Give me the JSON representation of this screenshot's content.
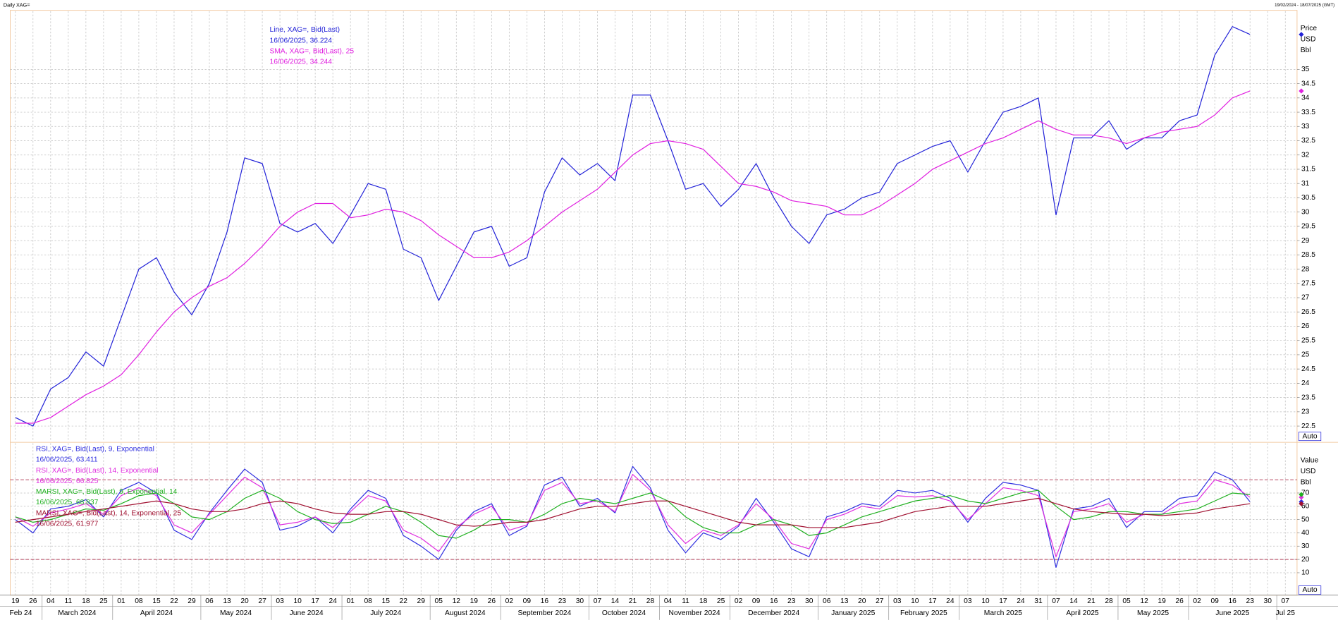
{
  "header": {
    "title": "Daily XAG=",
    "range": "19/02/2024 - 18/07/2025 (GMT)"
  },
  "chart_data": [
    {
      "type": "line",
      "axis_labels": [
        "Price",
        "USD",
        "Bbl"
      ],
      "scale_mode": "Auto",
      "ylim": [
        21.96,
        37.04
      ],
      "yticks": [
        22.5,
        23,
        23.5,
        24,
        24.5,
        25,
        25.5,
        26,
        26.5,
        27,
        27.5,
        28,
        28.5,
        29,
        29.5,
        30,
        30.5,
        31,
        31.5,
        32,
        32.5,
        33,
        33.5,
        34,
        34.5,
        35
      ],
      "grid": true,
      "series": [
        {
          "name": "Line, XAG=, Bid(Last)",
          "last_label": "16/06/2025, 36.224",
          "color": "#2323d8",
          "values": [
            22.8,
            22.5,
            23.8,
            24.2,
            25.1,
            24.6,
            26.3,
            28.0,
            28.4,
            27.2,
            26.4,
            27.5,
            29.3,
            31.9,
            31.7,
            29.6,
            29.3,
            29.6,
            28.9,
            29.9,
            31.0,
            30.8,
            28.7,
            28.4,
            26.9,
            28.1,
            29.3,
            29.5,
            28.1,
            28.4,
            30.7,
            31.9,
            31.3,
            31.7,
            31.1,
            34.1,
            34.1,
            32.5,
            30.8,
            31.0,
            30.2,
            30.8,
            31.7,
            30.5,
            29.5,
            28.9,
            29.9,
            30.1,
            30.5,
            30.7,
            31.7,
            32.0,
            32.3,
            32.5,
            31.4,
            32.5,
            33.5,
            33.7,
            34.0,
            29.9,
            32.6,
            32.6,
            33.2,
            32.2,
            32.6,
            32.6,
            33.2,
            33.4,
            35.5,
            36.5,
            36.224,
            null,
            null
          ]
        },
        {
          "name": "SMA, XAG=, Bid(Last),  25",
          "last_label": "16/06/2025, 34.244",
          "color": "#e020e0",
          "values": [
            22.6,
            22.6,
            22.8,
            23.2,
            23.6,
            23.9,
            24.3,
            25.0,
            25.8,
            26.5,
            27.0,
            27.4,
            27.7,
            28.2,
            28.8,
            29.5,
            30.0,
            30.3,
            30.3,
            29.8,
            29.9,
            30.1,
            30.0,
            29.7,
            29.2,
            28.8,
            28.4,
            28.4,
            28.6,
            29.0,
            29.5,
            30.0,
            30.4,
            30.8,
            31.4,
            32.0,
            32.4,
            32.5,
            32.4,
            32.2,
            31.6,
            31.0,
            30.9,
            30.7,
            30.4,
            30.3,
            30.2,
            29.9,
            29.9,
            30.2,
            30.6,
            31.0,
            31.5,
            31.8,
            32.1,
            32.4,
            32.6,
            32.9,
            33.2,
            32.9,
            32.7,
            32.7,
            32.6,
            32.4,
            32.6,
            32.8,
            32.9,
            33.0,
            33.4,
            34.0,
            34.244,
            null,
            null
          ]
        }
      ]
    },
    {
      "type": "line",
      "axis_labels": [
        "Value",
        "USD",
        "Bbl"
      ],
      "scale_mode": "Auto",
      "ylim": [
        -6.9,
        107.5
      ],
      "yticks": [
        10,
        20,
        30,
        40,
        50,
        60,
        70
      ],
      "levels": [
        80,
        20
      ],
      "grid": true,
      "categories": [
        "19",
        "26",
        "04",
        "11",
        "18",
        "25",
        "01",
        "08",
        "15",
        "22",
        "29",
        "06",
        "13",
        "20",
        "27",
        "03",
        "10",
        "17",
        "24",
        "01",
        "08",
        "15",
        "22",
        "29",
        "05",
        "12",
        "19",
        "26",
        "02",
        "09",
        "16",
        "23",
        "30",
        "07",
        "14",
        "21",
        "28",
        "04",
        "11",
        "18",
        "25",
        "02",
        "09",
        "16",
        "23",
        "30",
        "06",
        "13",
        "20",
        "27",
        "03",
        "10",
        "17",
        "24",
        "03",
        "10",
        "17",
        "24",
        "31",
        "07",
        "14",
        "21",
        "28",
        "05",
        "12",
        "19",
        "26",
        "02",
        "09",
        "16",
        "23",
        "30",
        "07"
      ],
      "months": [
        "Feb 24",
        "March 2024",
        "April 2024",
        "May 2024",
        "June 2024",
        "July 2024",
        "August 2024",
        "September 2024",
        "October 2024",
        "November 2024",
        "December 2024",
        "January 2025",
        "February 2025",
        "March 2025",
        "April 2025",
        "May 2025",
        "June 2025",
        "Jul 25"
      ],
      "series": [
        {
          "name": "RSI, XAG=, Bid(Last),  9, Exponential",
          "last_label": "16/06/2025, 63.411",
          "color": "#3030e0",
          "values": [
            50,
            40,
            58,
            60,
            65,
            52,
            72,
            78,
            70,
            42,
            35,
            55,
            72,
            88,
            78,
            42,
            45,
            52,
            40,
            58,
            72,
            66,
            38,
            30,
            20,
            42,
            56,
            62,
            38,
            45,
            76,
            82,
            60,
            66,
            55,
            90,
            74,
            42,
            25,
            40,
            35,
            45,
            66,
            48,
            28,
            22,
            52,
            56,
            62,
            60,
            72,
            70,
            72,
            66,
            48,
            66,
            78,
            76,
            72,
            14,
            58,
            60,
            66,
            44,
            56,
            56,
            66,
            68,
            86,
            80,
            63.411,
            null,
            null
          ]
        },
        {
          "name": "RSI, XAG=, Bid(Last),  14, Exponential",
          "last_label": "16/06/2025, 66.825",
          "color": "#e030e0",
          "values": [
            52,
            45,
            55,
            58,
            62,
            54,
            68,
            74,
            68,
            46,
            40,
            54,
            68,
            82,
            74,
            46,
            48,
            52,
            44,
            56,
            68,
            64,
            42,
            36,
            26,
            44,
            54,
            60,
            42,
            46,
            72,
            78,
            62,
            64,
            56,
            84,
            72,
            46,
            32,
            42,
            38,
            46,
            62,
            50,
            32,
            28,
            50,
            54,
            60,
            58,
            68,
            67,
            68,
            64,
            50,
            62,
            74,
            72,
            68,
            22,
            56,
            58,
            62,
            48,
            54,
            54,
            62,
            64,
            80,
            76,
            66.825,
            null,
            null
          ]
        },
        {
          "name": "MARSI, XAG=, Bid(Last),  9, Exponential, 14",
          "last_label": "16/06/2025, 68.837",
          "color": "#20b020",
          "values": [
            52,
            48,
            50,
            54,
            58,
            57,
            62,
            68,
            70,
            62,
            52,
            50,
            56,
            66,
            72,
            66,
            56,
            50,
            47,
            48,
            54,
            60,
            56,
            48,
            38,
            36,
            42,
            50,
            50,
            48,
            54,
            62,
            66,
            64,
            62,
            66,
            70,
            64,
            52,
            44,
            40,
            40,
            46,
            50,
            46,
            38,
            40,
            46,
            52,
            56,
            60,
            64,
            66,
            68,
            64,
            62,
            66,
            70,
            72,
            60,
            50,
            52,
            56,
            56,
            54,
            54,
            56,
            58,
            64,
            70,
            68.837,
            null,
            null
          ]
        },
        {
          "name": "MARSI, XAG=, Bid(Last),  14, Exponential, 25",
          "last_label": "16/06/2025, 61.977",
          "color": "#a01030",
          "values": [
            48,
            50,
            52,
            54,
            56,
            58,
            60,
            62,
            64,
            62,
            58,
            56,
            56,
            58,
            62,
            64,
            62,
            58,
            55,
            54,
            54,
            56,
            56,
            54,
            50,
            46,
            45,
            46,
            48,
            48,
            50,
            54,
            58,
            60,
            60,
            62,
            64,
            64,
            60,
            56,
            52,
            48,
            46,
            46,
            46,
            44,
            44,
            44,
            46,
            48,
            52,
            56,
            58,
            60,
            60,
            60,
            62,
            64,
            66,
            62,
            58,
            56,
            55,
            54,
            54,
            53,
            54,
            55,
            58,
            60,
            61.977,
            null,
            null
          ]
        }
      ]
    }
  ]
}
